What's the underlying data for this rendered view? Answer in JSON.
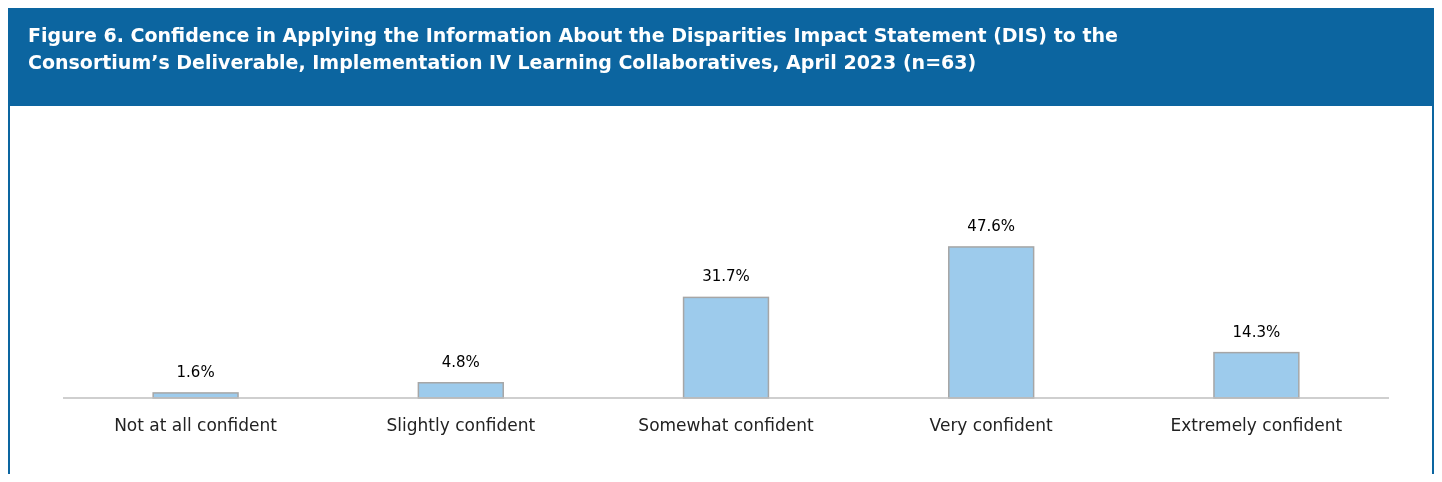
{
  "chart_data": {
    "type": "bar",
    "title": "Figure 6. Confidence in Applying the Information About the Disparities Impact Statement (DIS) to the Consortium’s Deliverable, Implementation IV Learning Collaboratives, April 2023 (n=63)",
    "categories": [
      "Not at all confident",
      "Slightly confident",
      "Somewhat confident",
      "Very confident",
      "Extremely confident"
    ],
    "values": [
      1.6,
      4.8,
      31.7,
      47.6,
      14.3
    ],
    "value_labels": [
      "1.6%",
      "4.8%",
      "31.7%",
      "47.6%",
      "14.3%"
    ],
    "color": "#9dcbec"
  }
}
